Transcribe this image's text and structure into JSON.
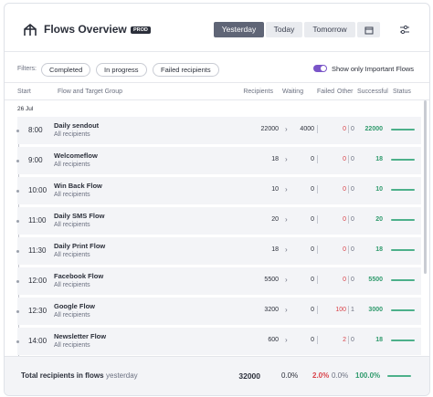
{
  "header": {
    "title": "Flows Overview",
    "badge": "PROD",
    "tabs": [
      "Yesterday",
      "Today",
      "Tomorrow"
    ]
  },
  "filters": {
    "label": "Filters:",
    "chips": [
      "Completed",
      "In progress",
      "Failed recipients"
    ],
    "toggle": "Show only Important Flows"
  },
  "table": {
    "columns": [
      "Start",
      "Flow and Target Group",
      "Recipients",
      "Waiting",
      "Failed",
      "Other",
      "Successful",
      "Status"
    ],
    "date": "26 Jul",
    "rows": [
      [
        "8:00",
        "Daily sendout",
        "All recipients",
        22000,
        4000,
        0,
        0,
        22000
      ],
      [
        "9:00",
        "Welcomeflow",
        "All recipients",
        18,
        0,
        0,
        0,
        18
      ],
      [
        "10:00",
        "Win Back Flow",
        "All recipients",
        10,
        0,
        0,
        0,
        10
      ],
      [
        "11:00",
        "Daily SMS Flow",
        "All recipients",
        20,
        0,
        0,
        0,
        20
      ],
      [
        "11:30",
        "Daily Print Flow",
        "All recipients",
        18,
        0,
        0,
        0,
        18
      ],
      [
        "12:00",
        "Facebook Flow",
        "All recipients",
        5500,
        0,
        0,
        0,
        5500
      ],
      [
        "12:30",
        "Google Flow",
        "All recipients",
        3200,
        0,
        100,
        1,
        3000
      ],
      [
        "14:00",
        "Newsletter Flow",
        "All recipients",
        600,
        0,
        2,
        0,
        18
      ]
    ]
  },
  "footer": {
    "label": "Total recipients in flows",
    "period": "yesterday",
    "total": 32000,
    "waiting": "0.0%",
    "failed": "2.0%",
    "other": "0.0%",
    "successful": "100.0%"
  }
}
